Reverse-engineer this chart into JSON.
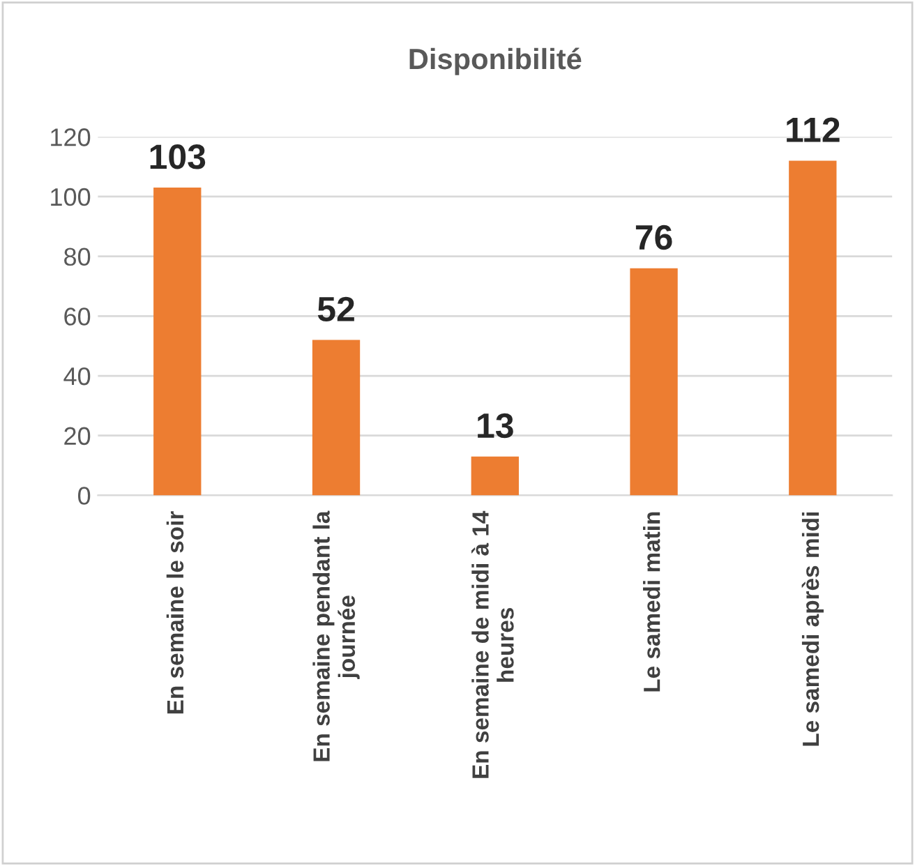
{
  "chart_data": {
    "type": "bar",
    "title": "Disponibilité",
    "categories": [
      "En semaine le soir",
      "En semaine pendant la\njournée",
      "En semaine de midi à 14\nheures",
      "Le samedi matin",
      "Le samedi après midi"
    ],
    "values": [
      103,
      52,
      13,
      76,
      112
    ],
    "color": "#ed7d31",
    "ylim": [
      0,
      120
    ],
    "yticks": [
      0,
      20,
      40,
      60,
      80,
      100,
      120
    ],
    "grid": "y",
    "data_labels": true,
    "legend": false
  }
}
